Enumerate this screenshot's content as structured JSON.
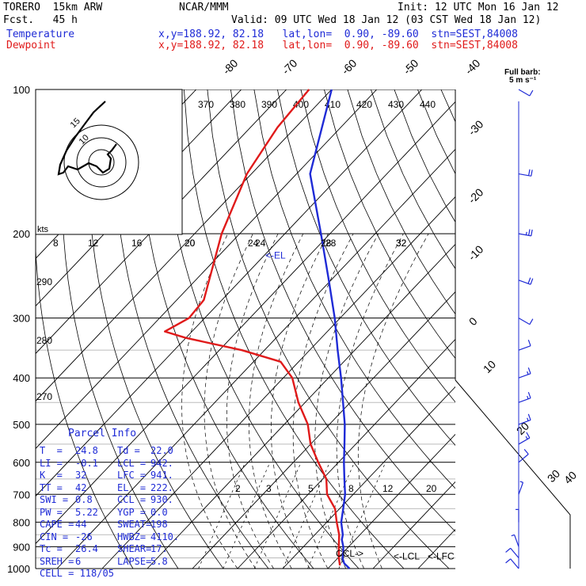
{
  "header": {
    "model": "TORERO  15km ARW",
    "org": "NCAR/MMM",
    "init": "Init: 12 UTC Mon 16 Jan 12",
    "fcst": "Fcst.   45 h",
    "valid": "Valid: 09 UTC Wed 18 Jan 12 (03 CST Wed 18 Jan 12)",
    "temp_label": "Temperature",
    "dew_label": "Dewpoint",
    "temp_loc": "x,y=188.92, 82.18   lat,lon=  0.90, -89.60  stn=SEST,84008",
    "dew_loc": "x,y=188.92, 82.18   lat,lon=  0.90, -89.60  stn=SEST,84008"
  },
  "colors": {
    "temperature": "#1f2bd6",
    "dewpoint": "#e01a1a",
    "wind": "#1f2bd6",
    "grid": "#000000"
  },
  "chart_data": {
    "type": "line",
    "title": "",
    "ylabel": "",
    "y_scale": "log-pressure",
    "ylim": [
      1000,
      100
    ],
    "pressure_ticks": [
      100,
      200,
      300,
      400,
      500,
      600,
      700,
      800,
      900,
      1000
    ],
    "isotherm_labels": [
      "-80",
      "-70",
      "-60",
      "-50",
      "-40",
      "-30",
      "-20",
      "-10",
      "0",
      "10",
      "20",
      "30",
      "40"
    ],
    "theta_labels": [
      "370",
      "380",
      "390",
      "400",
      "410",
      "420",
      "430",
      "440"
    ],
    "mixing_ratio_labels_top": [
      "20",
      "24",
      "28",
      "32"
    ],
    "mixing_ratio_labels_bottom": [
      "2",
      "3",
      "5",
      "8",
      "12",
      "20"
    ],
    "side_theta_labels": [
      "290",
      "280",
      "270"
    ],
    "series": [
      {
        "name": "Temperature",
        "color": "#1f2bd6",
        "points": [
          [
            1000,
            24.8
          ],
          [
            975,
            22.5
          ],
          [
            950,
            21.0
          ],
          [
            925,
            20.0
          ],
          [
            900,
            18.8
          ],
          [
            870,
            17.0
          ],
          [
            850,
            16.2
          ],
          [
            800,
            13.2
          ],
          [
            750,
            10.8
          ],
          [
            700,
            8.2
          ],
          [
            650,
            4.8
          ],
          [
            600,
            1.2
          ],
          [
            550,
            -2.5
          ],
          [
            500,
            -6.6
          ],
          [
            450,
            -11.6
          ],
          [
            400,
            -17.2
          ],
          [
            350,
            -23.8
          ],
          [
            300,
            -31.2
          ],
          [
            250,
            -40.5
          ],
          [
            200,
            -52.0
          ],
          [
            150,
            -67.0
          ],
          [
            100,
            -80.0
          ]
        ]
      },
      {
        "name": "Dewpoint",
        "color": "#e01a1a",
        "points": [
          [
            985,
            22.0
          ],
          [
            950,
            20.2
          ],
          [
            900,
            17.8
          ],
          [
            850,
            15.4
          ],
          [
            800,
            12.2
          ],
          [
            750,
            9.0
          ],
          [
            700,
            4.2
          ],
          [
            650,
            0.8
          ],
          [
            600,
            -4.5
          ],
          [
            550,
            -10.0
          ],
          [
            500,
            -14.8
          ],
          [
            450,
            -21.5
          ],
          [
            400,
            -28.0
          ],
          [
            370,
            -34.0
          ],
          [
            350,
            -45.0
          ],
          [
            330,
            -60.0
          ],
          [
            320,
            -66.0
          ],
          [
            300,
            -63.5
          ],
          [
            275,
            -64.0
          ],
          [
            250,
            -67.0
          ],
          [
            200,
            -74.0
          ],
          [
            150,
            -81.0
          ],
          [
            120,
            -84.0
          ],
          [
            100,
            -85.0
          ]
        ]
      }
    ],
    "wind_barbs": [
      {
        "p": 100,
        "direction": 300,
        "speed_ms": 5
      },
      {
        "p": 150,
        "direction": 280,
        "speed_ms": 12
      },
      {
        "p": 200,
        "direction": 280,
        "speed_ms": 14
      },
      {
        "p": 250,
        "direction": 290,
        "speed_ms": 12
      },
      {
        "p": 300,
        "direction": 300,
        "speed_ms": 6
      },
      {
        "p": 350,
        "direction": 250,
        "speed_ms": 7
      },
      {
        "p": 400,
        "direction": 250,
        "speed_ms": 8
      },
      {
        "p": 450,
        "direction": 250,
        "speed_ms": 9
      },
      {
        "p": 500,
        "direction": 250,
        "speed_ms": 9
      },
      {
        "p": 550,
        "direction": 240,
        "speed_ms": 8
      },
      {
        "p": 600,
        "direction": 230,
        "speed_ms": 6
      },
      {
        "p": 700,
        "direction": 200,
        "speed_ms": 4
      },
      {
        "p": 800,
        "direction": 180,
        "speed_ms": 3
      },
      {
        "p": 900,
        "direction": 160,
        "speed_ms": 4
      },
      {
        "p": 950,
        "direction": 140,
        "speed_ms": 6
      },
      {
        "p": 1000,
        "direction": 140,
        "speed_ms": 6
      }
    ],
    "annotations": {
      "el": "<-EL",
      "el_pressure": 222,
      "ccl": "CCL->",
      "ccl_pressure": 930,
      "lcl": "<-LCL",
      "lfc": "<-LFC",
      "lcl_pressure": 942
    }
  },
  "hodograph": {
    "unit_label": "kts",
    "speed_scale": [
      "8",
      "12",
      "16",
      "20",
      "24",
      "28",
      "32"
    ],
    "ring_labels": [
      "10",
      "15"
    ]
  },
  "legend": {
    "barb": "Full barb:",
    "barb_units": "5 m s⁻¹"
  },
  "parcel": {
    "title": "Parcel Info",
    "rows": [
      [
        "T  =",
        "24.8",
        "Td =",
        "22.0"
      ],
      [
        "LI =",
        "-0.1",
        "LCL =",
        "942."
      ],
      [
        "K  =",
        "32",
        "LFC =",
        "941."
      ],
      [
        "TT =",
        "42",
        "EL  =",
        "222."
      ],
      [
        "SWI =",
        "0.8",
        "CCL =",
        "930."
      ],
      [
        "PW =",
        "5.22",
        "YGP =",
        "0.0"
      ],
      [
        "CAPE =",
        "44",
        "SWEAT=",
        "198"
      ],
      [
        "CIN =",
        "-26",
        "HWBZ=",
        "4110."
      ],
      [
        "Tc =",
        "26.4",
        "SHEAR=",
        "17."
      ],
      [
        "SREH =",
        "6",
        "LAPSE=",
        "5.8"
      ]
    ],
    "cell_label": "CELL = 118/05"
  }
}
